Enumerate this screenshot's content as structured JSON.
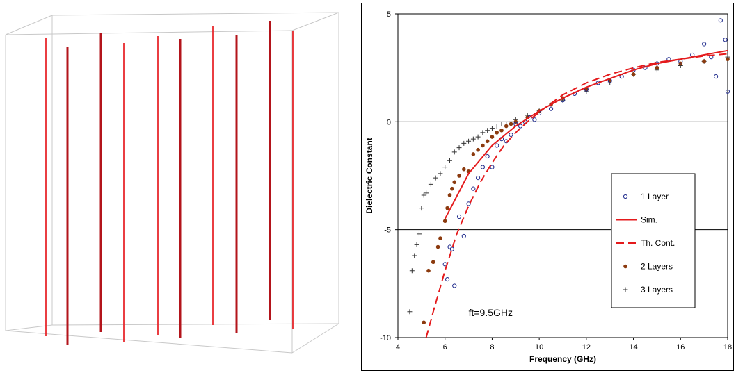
{
  "colors": {
    "wire_red": "#e8282d",
    "wire_dark": "#b3141b",
    "box_edge": "#c8c8c8",
    "sim": "#e41a1c",
    "layer1": "#1f2a8c",
    "layer2": "#8b3a0e",
    "layer3": "#333333"
  },
  "chart_data": {
    "type": "scatter",
    "title": "",
    "xlabel": "Frequency (GHz)",
    "ylabel": "Dielectric Constant",
    "xlim": [
      4,
      18
    ],
    "ylim": [
      -10,
      5
    ],
    "xticks": [
      4,
      6,
      8,
      10,
      12,
      14,
      16,
      18
    ],
    "yticks": [
      -10,
      -5,
      0,
      5
    ],
    "gridlines_y": [
      -5,
      0
    ],
    "annotation": "ft=9.5GHz",
    "legend": [
      "1 Layer",
      "Sim.",
      "Th. Cont.",
      "2 Layers",
      "3 Layers"
    ],
    "legend_placement": "right",
    "series": [
      {
        "name": "1 Layer",
        "marker": "open-circle",
        "x": [
          6.0,
          6.1,
          6.2,
          6.3,
          6.4,
          6.6,
          6.8,
          7.0,
          7.2,
          7.4,
          7.6,
          7.8,
          8.0,
          8.2,
          8.4,
          8.6,
          8.8,
          9.0,
          9.2,
          9.4,
          9.6,
          9.8,
          10.0,
          10.5,
          11.0,
          11.5,
          12.0,
          12.5,
          13.0,
          13.5,
          14.0,
          14.5,
          15.0,
          15.5,
          16.0,
          16.5,
          17.0,
          17.3,
          17.5,
          17.7,
          17.9,
          18.0
        ],
        "y": [
          -6.6,
          -7.3,
          -5.8,
          -5.9,
          -7.6,
          -4.4,
          -5.3,
          -3.8,
          -3.1,
          -2.6,
          -2.1,
          -1.6,
          -2.1,
          -1.1,
          -0.8,
          -0.9,
          -0.6,
          -0.1,
          -0.2,
          0.0,
          0.2,
          0.1,
          0.4,
          0.6,
          1.0,
          1.3,
          1.5,
          1.8,
          1.9,
          2.1,
          2.4,
          2.5,
          2.7,
          2.9,
          2.8,
          3.1,
          3.6,
          3.0,
          2.1,
          4.7,
          3.8,
          1.4
        ]
      },
      {
        "name": "Sim.",
        "style": "solid-line",
        "x": [
          6.0,
          7.0,
          8.0,
          9.0,
          10.0,
          11.0,
          12.0,
          13.0,
          14.0,
          15.0,
          16.0,
          17.0,
          18.0
        ],
        "y": [
          -4.5,
          -2.4,
          -1.1,
          -0.2,
          0.5,
          1.1,
          1.6,
          2.0,
          2.4,
          2.7,
          2.9,
          3.1,
          3.3
        ]
      },
      {
        "name": "Th. Cont.",
        "style": "dashed-line",
        "x": [
          5.2,
          5.5,
          6.0,
          6.5,
          7.0,
          7.5,
          8.0,
          8.5,
          9.0,
          9.5,
          10.0,
          11.0,
          12.0,
          13.0,
          14.0,
          15.0,
          16.0,
          17.0,
          18.0
        ],
        "y": [
          -10.0,
          -8.8,
          -6.9,
          -5.2,
          -3.9,
          -2.8,
          -1.9,
          -1.1,
          -0.5,
          0.0,
          0.45,
          1.25,
          1.8,
          2.2,
          2.5,
          2.75,
          2.9,
          3.05,
          3.15
        ]
      },
      {
        "name": "2 Layers",
        "marker": "filled-circle",
        "x": [
          5.1,
          5.3,
          5.5,
          5.7,
          5.8,
          6.0,
          6.1,
          6.2,
          6.3,
          6.4,
          6.6,
          6.8,
          7.0,
          7.2,
          7.4,
          7.6,
          7.8,
          8.0,
          8.2,
          8.4,
          8.6,
          8.8,
          9.0,
          9.5,
          10.0,
          10.5,
          11.0,
          12.0,
          13.0,
          14.0,
          15.0,
          16.0,
          17.0,
          18.0
        ],
        "y": [
          -9.3,
          -6.9,
          -6.5,
          -5.8,
          -5.4,
          -4.6,
          -4.0,
          -3.4,
          -3.1,
          -2.8,
          -2.5,
          -2.2,
          -2.3,
          -1.5,
          -1.3,
          -1.1,
          -0.9,
          -0.7,
          -0.5,
          -0.4,
          -0.2,
          -0.1,
          0.0,
          0.2,
          0.5,
          0.8,
          1.1,
          1.5,
          1.9,
          2.2,
          2.5,
          2.7,
          2.8,
          2.9
        ]
      },
      {
        "name": "3 Layers",
        "marker": "plus",
        "x": [
          4.5,
          4.6,
          4.7,
          4.8,
          4.9,
          5.0,
          5.1,
          5.2,
          5.4,
          5.6,
          5.8,
          6.0,
          6.2,
          6.4,
          6.6,
          6.8,
          7.0,
          7.2,
          7.4,
          7.6,
          7.8,
          8.0,
          8.2,
          8.4,
          8.6,
          8.8,
          9.0,
          9.5,
          10.0,
          11.0,
          12.0,
          13.0,
          14.0,
          15.0,
          16.0,
          17.0,
          18.0
        ],
        "y": [
          -8.8,
          -6.9,
          -6.2,
          -5.7,
          -5.2,
          -4.0,
          -3.4,
          -3.3,
          -2.9,
          -2.6,
          -2.4,
          -2.1,
          -1.8,
          -1.4,
          -1.2,
          -1.0,
          -0.9,
          -0.8,
          -0.7,
          -0.5,
          -0.4,
          -0.3,
          -0.2,
          -0.1,
          -0.1,
          0.0,
          0.1,
          0.3,
          0.5,
          1.0,
          1.4,
          1.8,
          2.2,
          2.4,
          2.6,
          2.8,
          3.0
        ]
      }
    ]
  }
}
